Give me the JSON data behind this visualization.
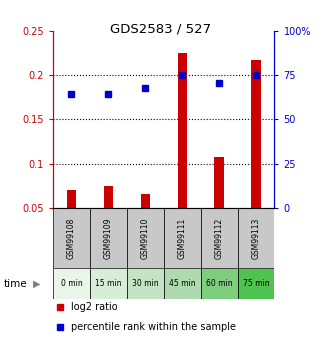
{
  "title": "GDS2583 / 527",
  "samples": [
    "GSM99108",
    "GSM99109",
    "GSM99110",
    "GSM99111",
    "GSM99112",
    "GSM99113"
  ],
  "time_labels": [
    "0 min",
    "15 min",
    "30 min",
    "45 min",
    "60 min",
    "75 min"
  ],
  "log2_ratio": [
    0.07,
    0.075,
    0.065,
    0.225,
    0.107,
    0.217
  ],
  "percentile_rank": [
    64.5,
    64.5,
    67.5,
    75.0,
    70.5,
    75.0
  ],
  "left_ylim": [
    0.05,
    0.25
  ],
  "left_yticks": [
    0.05,
    0.1,
    0.15,
    0.2,
    0.25
  ],
  "left_yticklabels": [
    "0.05",
    "0.1",
    "0.15",
    "0.2",
    "0.25"
  ],
  "right_ylim": [
    0,
    100
  ],
  "right_yticks": [
    0,
    25,
    50,
    75,
    100
  ],
  "right_yticklabels": [
    "0",
    "25",
    "50",
    "75",
    "100%"
  ],
  "hgrid_lines": [
    0.1,
    0.15,
    0.2
  ],
  "bar_color": "#cc0000",
  "dot_color": "#0000cc",
  "left_tick_color": "#cc0000",
  "right_tick_color": "#0000cc",
  "time_colors": [
    "#eaf5ea",
    "#d8edd8",
    "#c4e3c4",
    "#afd9af",
    "#7ece7e",
    "#4fc24f"
  ],
  "sample_box_color": "#c8c8c8",
  "legend_log2_color": "#cc0000",
  "legend_pct_color": "#0000cc",
  "bar_width": 0.25
}
